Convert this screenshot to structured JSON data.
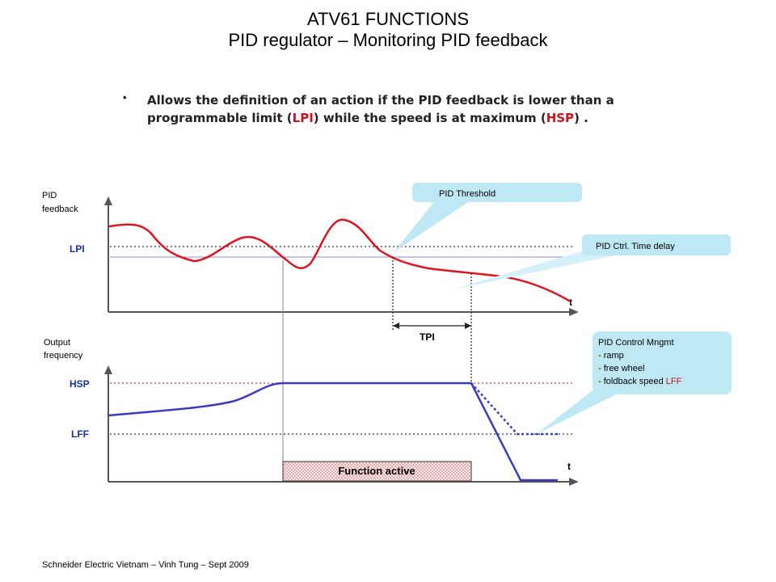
{
  "header": {
    "title_line1": "ATV61 FUNCTIONS",
    "title_line2": "PID regulator – Monitoring PID feedback"
  },
  "description": {
    "bullet": "•",
    "text_part1": "Allows the definition of an action if the PID feedback is lower than a programmable limit (",
    "lpi": "LPI",
    "text_part2": ") while the speed is at maximum (",
    "hsp": "HSP",
    "text_part3": ") ."
  },
  "top_graph": {
    "y_label_line1": "PID",
    "y_label_line2": "feedback",
    "level_label": "LPI",
    "t_label": "t",
    "tpi_label": "TPI"
  },
  "bottom_graph": {
    "y_label_line1": "Output",
    "y_label_line2": "frequency",
    "hsp_label": "HSP",
    "lff_label": "LFF",
    "t_label": "t",
    "function_active": "Function active"
  },
  "callouts": {
    "pid_threshold": "PID Threshold",
    "pid_time_delay": "PID Ctrl. Time delay",
    "pid_control_title": "PID Control Mngmt",
    "pid_control_item1": "- ramp",
    "pid_control_item2": "- free wheel",
    "pid_control_item3_prefix": "- foldback speed ",
    "pid_control_item3_lff": "LFF"
  },
  "colors": {
    "feedback_curve": "#e0141e",
    "frequency_curve": "#3a3ac0",
    "level_label": "#1a2fa0",
    "callout_fill": "#bfe8f5",
    "hsp_line": "#e23a3a"
  },
  "footer": {
    "text": "Schneider Electric Vietnam – Vinh Tung – Sept 2009"
  }
}
